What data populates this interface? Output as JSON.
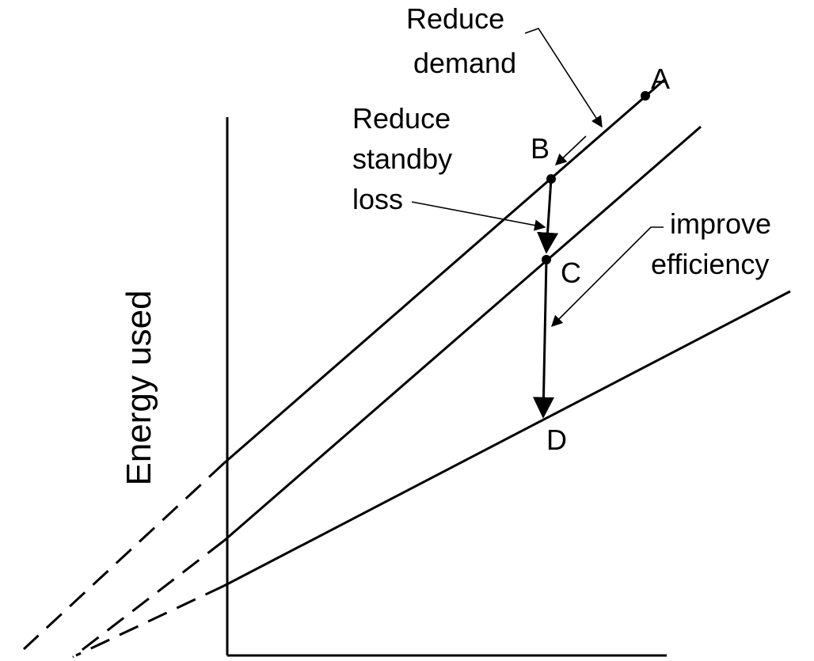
{
  "labels": {
    "reduce_demand": [
      "Reduce",
      "demand"
    ],
    "reduce_standby_loss": [
      "Reduce",
      "standby",
      "loss"
    ],
    "improve_efficiency": [
      "improve",
      "efficiency"
    ],
    "point_a": "A",
    "point_b": "B",
    "point_c": "C",
    "point_d": "D",
    "y_axis": "Energy used"
  }
}
